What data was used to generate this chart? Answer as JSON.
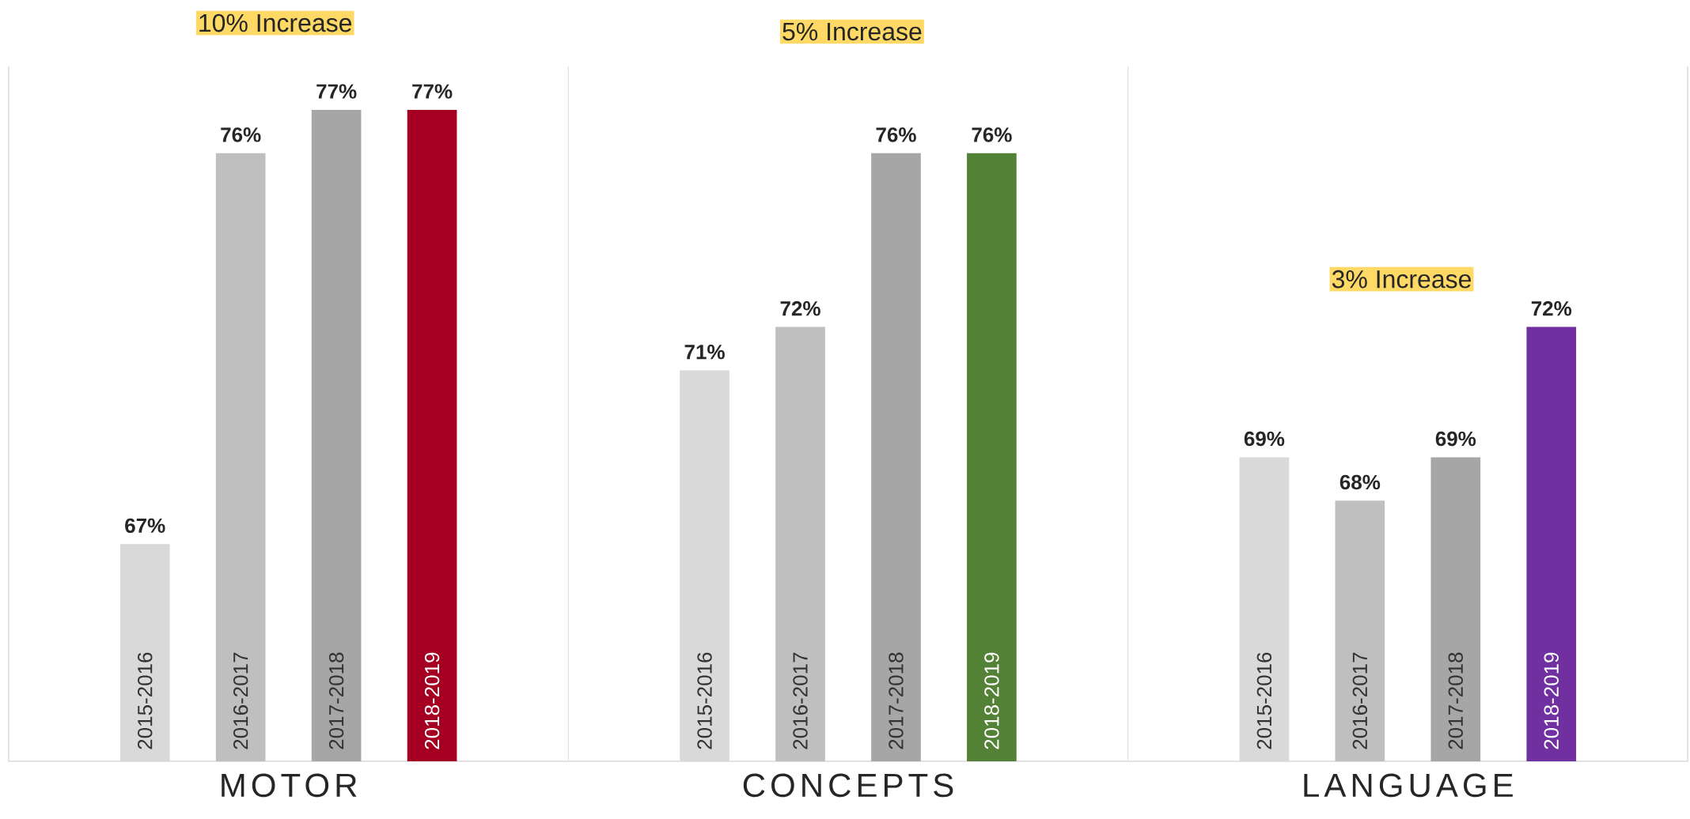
{
  "chart_data": {
    "type": "bar",
    "categories": [
      "MOTOR",
      "CONCEPTS",
      "LANGUAGE"
    ],
    "series": [
      {
        "name": "2015-2016",
        "color": "#d9d9d9",
        "values": [
          67,
          71,
          69
        ],
        "value_labels": [
          "67%",
          "71%",
          "69%"
        ]
      },
      {
        "name": "2016-2017",
        "color": "#bfbfbf",
        "values": [
          76,
          72,
          68
        ],
        "value_labels": [
          "76%",
          "72%",
          "68%"
        ]
      },
      {
        "name": "2017-2018",
        "color": "#a6a6a6",
        "values": [
          77,
          76,
          69
        ],
        "value_labels": [
          "77%",
          "76%",
          "69%"
        ]
      },
      {
        "name": "2018-2019",
        "colors": [
          "#a50021",
          "#538135",
          "#7030a0"
        ],
        "values": [
          77,
          76,
          72
        ],
        "value_labels": [
          "77%",
          "76%",
          "72%"
        ]
      }
    ],
    "ylim": [
      62,
      78
    ],
    "tick_labels": "x",
    "legend": false,
    "grid": false,
    "annotations": [
      "10% Increase",
      "5% Increase",
      "3% Increase"
    ]
  }
}
